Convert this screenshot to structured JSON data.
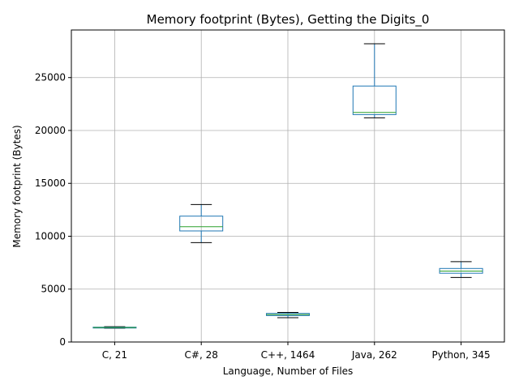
{
  "chart_data": {
    "type": "box",
    "title": "Memory footprint (Bytes), Getting the Digits_0",
    "xlabel": "Language, Number of Files",
    "ylabel": "Memory footprint (Bytes)",
    "ylim": [
      0,
      29500
    ],
    "yticks": [
      0,
      5000,
      10000,
      15000,
      20000,
      25000
    ],
    "yticklabels": [
      "0",
      "5000",
      "10000",
      "15000",
      "20000",
      "25000"
    ],
    "grid": true,
    "colors": {
      "box": "#1f77b4",
      "median": "#2ca02c",
      "whisker_cap": "#000000",
      "grid": "#b0b0b0"
    },
    "categories": [
      "C, 21",
      "C#, 28",
      "C++, 1464",
      "Java, 262",
      "Python, 345"
    ],
    "boxes": [
      {
        "whislo": 1300,
        "q1": 1330,
        "med": 1370,
        "q3": 1400,
        "whishi": 1450
      },
      {
        "whislo": 9400,
        "q1": 10500,
        "med": 10900,
        "q3": 11900,
        "whishi": 13000
      },
      {
        "whislo": 2300,
        "q1": 2500,
        "med": 2600,
        "q3": 2700,
        "whishi": 2800
      },
      {
        "whislo": 21200,
        "q1": 21500,
        "med": 21700,
        "q3": 24200,
        "whishi": 28200
      },
      {
        "whislo": 6100,
        "q1": 6500,
        "med": 6700,
        "q3": 6950,
        "whishi": 7600
      }
    ]
  }
}
